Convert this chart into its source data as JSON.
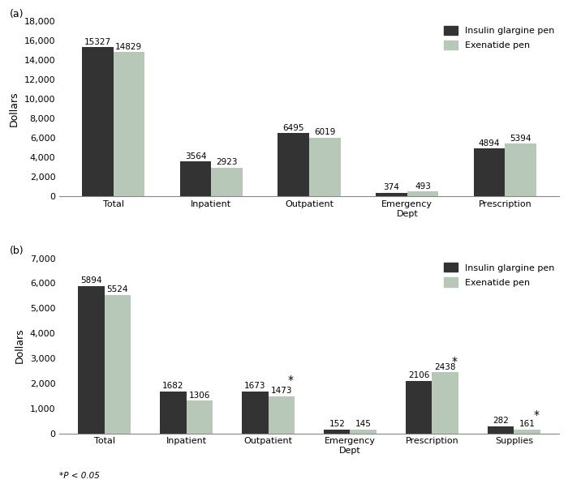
{
  "panel_a": {
    "label": "(a)",
    "categories": [
      "Total",
      "Inpatient",
      "Outpatient",
      "Emergency\nDept",
      "Prescription"
    ],
    "insulin": [
      15327,
      3564,
      6495,
      374,
      4894
    ],
    "exenatide": [
      14829,
      2923,
      6019,
      493,
      5394
    ],
    "ylim": [
      0,
      18000
    ],
    "yticks": [
      0,
      2000,
      4000,
      6000,
      8000,
      10000,
      12000,
      14000,
      16000,
      18000
    ],
    "ylabel": "Dollars",
    "star": [
      false,
      false,
      false,
      false,
      false
    ]
  },
  "panel_b": {
    "label": "(b)",
    "categories": [
      "Total",
      "Inpatient",
      "Outpatient",
      "Emergency\nDept",
      "Prescription",
      "Supplies"
    ],
    "insulin": [
      5894,
      1682,
      1673,
      152,
      2106,
      282
    ],
    "exenatide": [
      5524,
      1306,
      1473,
      145,
      2438,
      161
    ],
    "ylim": [
      0,
      7000
    ],
    "yticks": [
      0,
      1000,
      2000,
      3000,
      4000,
      5000,
      6000,
      7000
    ],
    "ylabel": "Dollars",
    "star": [
      false,
      false,
      true,
      false,
      true,
      true
    ],
    "footnote": "*P < 0.05"
  },
  "color_insulin": "#333333",
  "color_exenatide": "#b8c8b8",
  "legend_insulin": "Insulin glargine pen",
  "legend_exenatide": "Exenatide pen",
  "bar_width": 0.32,
  "label_fontsize": 7.5,
  "tick_fontsize": 8,
  "axis_label_fontsize": 9,
  "legend_fontsize": 8
}
